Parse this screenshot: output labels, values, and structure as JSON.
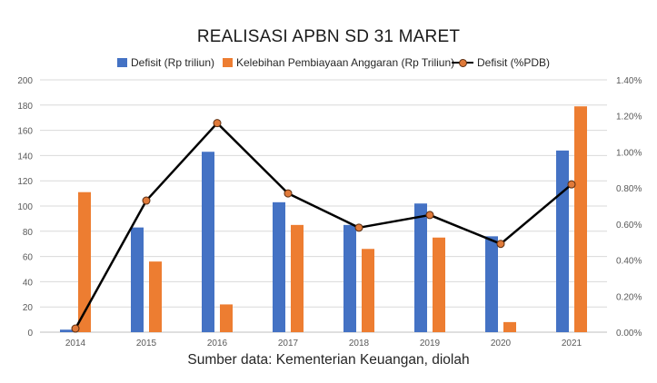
{
  "title": "REALISASI APBN SD 31 MARET",
  "source": "Sumber data: Kementerian Keuangan, diolah",
  "chart_data": {
    "type": "bar",
    "title": "REALISASI APBN SD 31 MARET",
    "categories": [
      "2014",
      "2015",
      "2016",
      "2017",
      "2018",
      "2019",
      "2020",
      "2021"
    ],
    "series": [
      {
        "name": "Defisit (Rp triliun)",
        "type": "bar",
        "axis": "left",
        "color": "#4472c4",
        "values": [
          2,
          83,
          143,
          103,
          85,
          102,
          76,
          144
        ]
      },
      {
        "name": "Kelebihan Pembiayaan Anggaran (Rp Triliun)",
        "type": "bar",
        "axis": "left",
        "color": "#ed7d31",
        "values": [
          111,
          56,
          22,
          85,
          66,
          75,
          8,
          179
        ]
      },
      {
        "name": "Defisit (%PDB)",
        "type": "line",
        "axis": "right",
        "color": "#000000",
        "marker_color": "#e07a3a",
        "values": [
          0.02,
          0.73,
          1.16,
          0.77,
          0.58,
          0.65,
          0.49,
          0.82
        ]
      }
    ],
    "y_left": {
      "ylim": [
        0,
        200
      ],
      "ticks": [
        "0",
        "20",
        "40",
        "60",
        "80",
        "100",
        "120",
        "140",
        "160",
        "180",
        "200"
      ]
    },
    "y_right": {
      "ylim": [
        0,
        1.4
      ],
      "ticks": [
        "0.00%",
        "0.20%",
        "0.40%",
        "0.60%",
        "0.80%",
        "1.00%",
        "1.20%",
        "1.40%"
      ]
    },
    "grid": true,
    "legend_position": "top"
  }
}
